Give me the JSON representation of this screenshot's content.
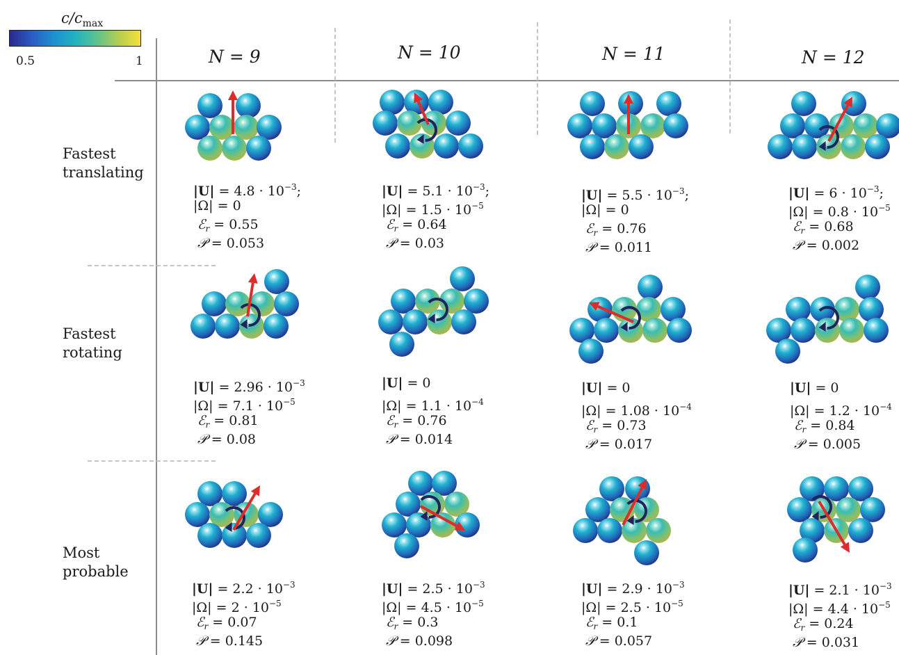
{
  "colorbar": {
    "title_main": "c/c",
    "title_sub": "max",
    "min_label": "0.5",
    "max_label": "1",
    "colors": [
      "#2b2a8c",
      "#2a5bc4",
      "#1f8fd0",
      "#1fb3c0",
      "#5cc28f",
      "#b6cc4f",
      "#f5e03a"
    ]
  },
  "columns": [
    "N = 9",
    "N = 10",
    "N = 11",
    "N = 12"
  ],
  "rows": [
    {
      "label_line1": "Fastest",
      "label_line2": "translating"
    },
    {
      "label_line1": "Fastest",
      "label_line2": "rotating"
    },
    {
      "label_line1": "Most",
      "label_line2": "probable"
    }
  ],
  "cells": [
    [
      {
        "U": "4.8",
        "U_exp": "−3",
        "U_suffix": ";",
        "Omega": "0",
        "Omega_exp": "",
        "Er": "0.55",
        "P": "0.053"
      },
      {
        "U": "5.1",
        "U_exp": "−3",
        "U_suffix": ";",
        "Omega": "1.5",
        "Omega_exp": "−5",
        "Er": "0.64",
        "P": "0.03"
      },
      {
        "U": "5.5",
        "U_exp": "−3",
        "U_suffix": ";",
        "Omega": "0",
        "Omega_exp": "",
        "Er": "0.76",
        "P": "0.011"
      },
      {
        "U": "6",
        "U_exp": "−3",
        "U_suffix": ";",
        "Omega": "0.8",
        "Omega_exp": "−5",
        "Er": "0.68",
        "P": "0.002"
      }
    ],
    [
      {
        "U": "2.96",
        "U_exp": "−3",
        "U_suffix": "",
        "Omega": "7.1",
        "Omega_exp": "−5",
        "Er": "0.81",
        "P": "0.08"
      },
      {
        "U": "0",
        "U_exp": "",
        "U_suffix": "",
        "Omega": "1.1",
        "Omega_exp": "−4",
        "Er": "0.76",
        "P": "0.014"
      },
      {
        "U": "0",
        "U_exp": "",
        "U_suffix": "",
        "Omega": "1.08",
        "Omega_exp": "−4",
        "Er": "0.73",
        "P": "0.017"
      },
      {
        "U": "0",
        "U_exp": "",
        "U_suffix": "",
        "Omega": "1.2",
        "Omega_exp": "−4",
        "Er": "0.84",
        "P": "0.005"
      }
    ],
    [
      {
        "U": "2.2",
        "U_exp": "−3",
        "U_suffix": "",
        "Omega": "2",
        "Omega_exp": "−5",
        "Er": "0.07",
        "P": "0.145"
      },
      {
        "U": "2.5",
        "U_exp": "−3",
        "U_suffix": "",
        "Omega": "4.5",
        "Omega_exp": "−5",
        "Er": "0.3",
        "P": "0.098"
      },
      {
        "U": "2.9",
        "U_exp": "−3",
        "U_suffix": "",
        "Omega": "2.5",
        "Omega_exp": "−5",
        "Er": "0.1",
        "P": "0.057"
      },
      {
        "U": "2.1",
        "U_exp": "−3",
        "U_suffix": "",
        "Omega": "4.4",
        "Omega_exp": "−5",
        "Er": "0.24",
        "P": "0.031"
      }
    ]
  ],
  "colors": {
    "arrow": "#e02b2b",
    "rotation": "#23235e",
    "grid_line": "#8c8c8c",
    "dashed": "#bdbdbd"
  }
}
